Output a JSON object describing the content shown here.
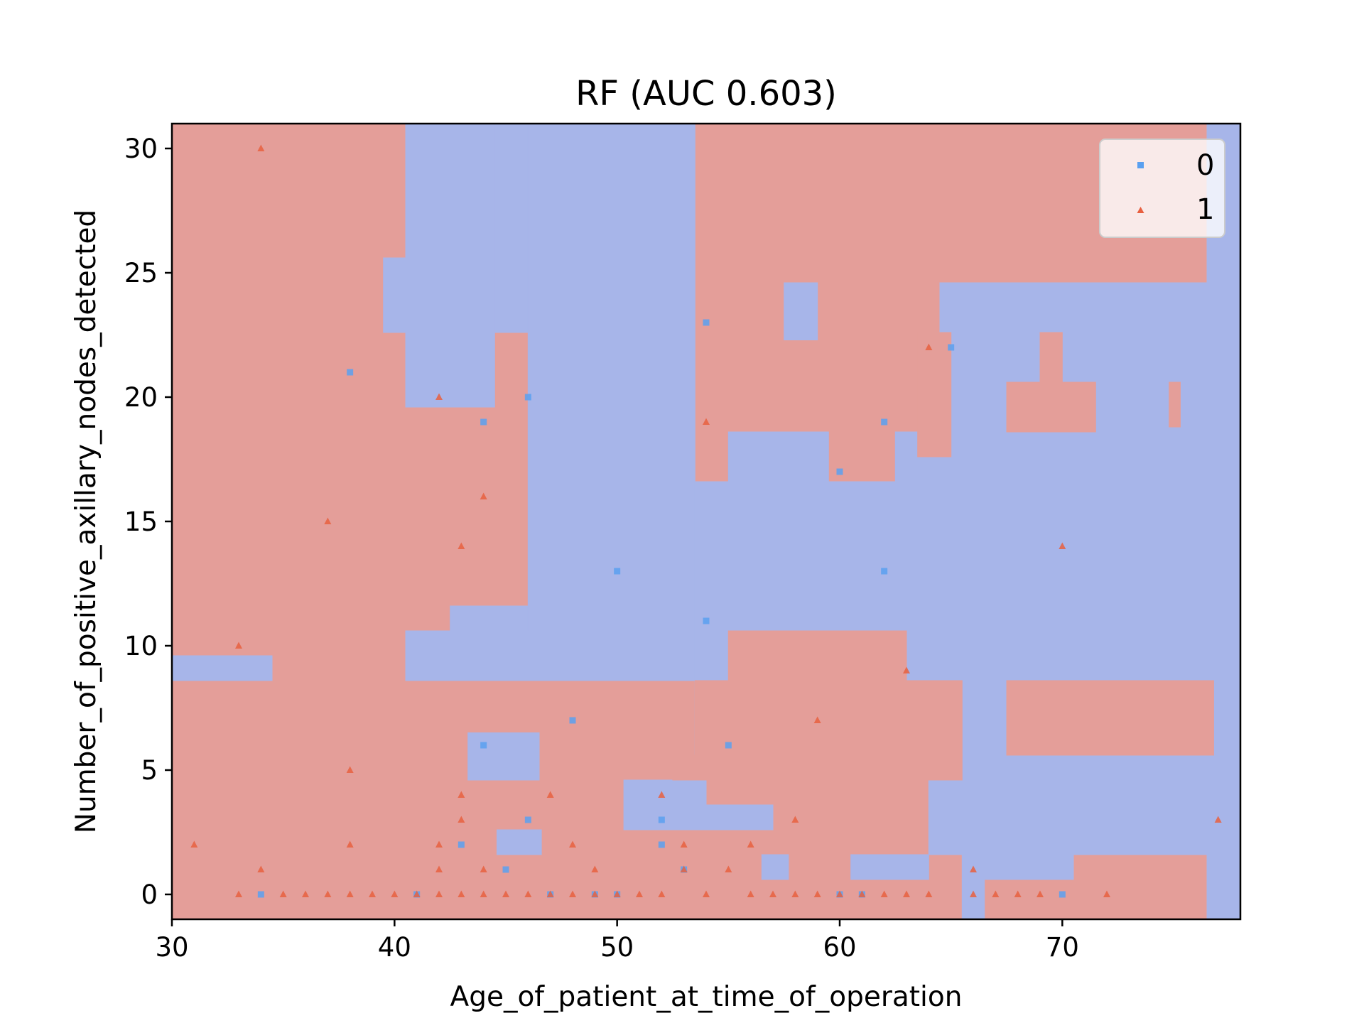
{
  "chart_data": {
    "type": "scatter",
    "title": "RF (AUC 0.603)",
    "xlabel": "Age_of_patient_at_time_of_operation",
    "ylabel": "Number_of_positive_axillary_nodes_detected",
    "xlim": [
      30,
      78
    ],
    "ylim": [
      -1,
      31
    ],
    "xticks": [
      30,
      40,
      50,
      60,
      70
    ],
    "yticks": [
      0,
      5,
      10,
      15,
      20,
      25,
      30
    ],
    "legend_position": "top-right",
    "colors": {
      "region_class_0": "#a7b5e9",
      "region_class_1": "#e49e99",
      "marker_class_0": "#5aa0f0",
      "marker_class_1": "#e86040"
    },
    "decision_region_class_0": [
      [
        [
          40.5,
          31
        ],
        [
          44.5,
          31
        ],
        [
          44.5,
          19.6
        ],
        [
          40.5,
          19.6
        ]
      ],
      [
        [
          39.5,
          22.6
        ],
        [
          40.5,
          22.6
        ],
        [
          40.5,
          25.6
        ],
        [
          39.5,
          25.6
        ]
      ],
      [
        [
          44.5,
          31
        ],
        [
          46,
          31
        ],
        [
          46,
          22.6
        ],
        [
          44.5,
          22.6
        ]
      ],
      [
        [
          46,
          31
        ],
        [
          53.5,
          31
        ],
        [
          53.5,
          10.6
        ],
        [
          46,
          10.6
        ]
      ],
      [
        [
          40.5,
          10.6
        ],
        [
          53.5,
          10.6
        ],
        [
          53.5,
          8.6
        ],
        [
          40.5,
          8.6
        ]
      ],
      [
        [
          42.5,
          11.6
        ],
        [
          46,
          11.6
        ],
        [
          46,
          10.6
        ],
        [
          42.5,
          10.6
        ]
      ],
      [
        [
          53.5,
          16.6
        ],
        [
          78,
          16.6
        ],
        [
          78,
          4.6
        ],
        [
          53.5,
          4.6
        ]
      ],
      [
        [
          55,
          18.6
        ],
        [
          59.5,
          18.6
        ],
        [
          59.5,
          16.6
        ],
        [
          55,
          16.6
        ]
      ],
      [
        [
          62.5,
          18.6
        ],
        [
          64.5,
          18.6
        ],
        [
          64.5,
          16.6
        ],
        [
          62.5,
          16.6
        ]
      ],
      [
        [
          64.5,
          24.6
        ],
        [
          78,
          24.6
        ],
        [
          78,
          16.6
        ],
        [
          64.5,
          16.6
        ]
      ],
      [
        [
          76.5,
          31
        ],
        [
          78,
          31
        ],
        [
          78,
          24.6
        ],
        [
          76.5,
          24.6
        ]
      ],
      [
        [
          57.5,
          24.6
        ],
        [
          59,
          24.6
        ],
        [
          59,
          22.3
        ],
        [
          57.5,
          22.3
        ]
      ],
      [
        [
          30,
          9.6
        ],
        [
          34.5,
          9.6
        ],
        [
          34.5,
          8.6
        ],
        [
          30,
          8.6
        ]
      ],
      [
        [
          43.3,
          6.5
        ],
        [
          46.5,
          6.5
        ],
        [
          46.5,
          4.6
        ],
        [
          43.3,
          4.6
        ]
      ],
      [
        [
          44.6,
          2.6
        ],
        [
          46.6,
          2.6
        ],
        [
          46.6,
          1.6
        ],
        [
          44.6,
          1.6
        ]
      ],
      [
        [
          50.3,
          4.6
        ],
        [
          54,
          4.6
        ],
        [
          54,
          2.6
        ],
        [
          50.3,
          2.6
        ]
      ],
      [
        [
          54,
          3.6
        ],
        [
          57,
          3.6
        ],
        [
          57,
          2.6
        ],
        [
          54,
          2.6
        ]
      ],
      [
        [
          56.5,
          1.6
        ],
        [
          57.7,
          1.6
        ],
        [
          57.7,
          0.6
        ],
        [
          56.5,
          0.6
        ]
      ],
      [
        [
          60.5,
          1.6
        ],
        [
          64,
          1.6
        ],
        [
          64,
          0.6
        ],
        [
          60.5,
          0.6
        ]
      ],
      [
        [
          64,
          4.6
        ],
        [
          78,
          4.6
        ],
        [
          78,
          1.6
        ],
        [
          64,
          1.6
        ]
      ],
      [
        [
          65.5,
          1.6
        ],
        [
          70.5,
          1.6
        ],
        [
          70.5,
          0.6
        ],
        [
          65.5,
          0.6
        ]
      ],
      [
        [
          65.5,
          0.6
        ],
        [
          66.5,
          0.6
        ],
        [
          66.5,
          -1
        ],
        [
          65.5,
          -1
        ]
      ],
      [
        [
          76.5,
          1.6
        ],
        [
          78,
          1.6
        ],
        [
          78,
          -1
        ],
        [
          76.5,
          -1
        ]
      ]
    ],
    "decision_region_class_1": [
      [
        [
          63.5,
          22.6
        ],
        [
          65,
          22.6
        ],
        [
          65,
          17.6
        ],
        [
          63.5,
          17.6
        ]
      ],
      [
        [
          67.5,
          20.6
        ],
        [
          71.5,
          20.6
        ],
        [
          71.5,
          18.6
        ],
        [
          67.5,
          18.6
        ]
      ],
      [
        [
          69,
          22.6
        ],
        [
          70,
          22.6
        ],
        [
          70,
          20.6
        ],
        [
          69,
          20.6
        ]
      ],
      [
        [
          74.8,
          20.6
        ],
        [
          75.3,
          20.6
        ],
        [
          75.3,
          18.8
        ],
        [
          74.8,
          18.8
        ]
      ],
      [
        [
          55,
          10.6
        ],
        [
          63,
          10.6
        ],
        [
          63,
          8.6
        ],
        [
          55,
          8.6
        ]
      ],
      [
        [
          53.5,
          8.6
        ],
        [
          65.5,
          8.6
        ],
        [
          65.5,
          5.6
        ],
        [
          53.5,
          5.6
        ]
      ],
      [
        [
          52.5,
          5.6
        ],
        [
          65.5,
          5.6
        ],
        [
          65.5,
          4.6
        ],
        [
          52.5,
          4.6
        ]
      ],
      [
        [
          67.5,
          8.6
        ],
        [
          76.8,
          8.6
        ],
        [
          76.8,
          5.6
        ],
        [
          67.5,
          5.6
        ]
      ]
    ],
    "series": [
      {
        "name": "0",
        "marker": "square",
        "points": [
          [
            34,
            0
          ],
          [
            38,
            21
          ],
          [
            41,
            0
          ],
          [
            43,
            2
          ],
          [
            44,
            19
          ],
          [
            44,
            6
          ],
          [
            45,
            1
          ],
          [
            46,
            20
          ],
          [
            46,
            3
          ],
          [
            47,
            0
          ],
          [
            48,
            7
          ],
          [
            49,
            0
          ],
          [
            50,
            13
          ],
          [
            50,
            0
          ],
          [
            52,
            3
          ],
          [
            52,
            2
          ],
          [
            53,
            1
          ],
          [
            54,
            23
          ],
          [
            54,
            11
          ],
          [
            55,
            6
          ],
          [
            60,
            17
          ],
          [
            60,
            0
          ],
          [
            61,
            0
          ],
          [
            62,
            19
          ],
          [
            62,
            13
          ],
          [
            65,
            22
          ],
          [
            70,
            0
          ]
        ]
      },
      {
        "name": "1",
        "marker": "triangle",
        "points": [
          [
            31,
            2
          ],
          [
            33,
            10
          ],
          [
            33,
            0
          ],
          [
            34,
            30
          ],
          [
            34,
            1
          ],
          [
            35,
            0
          ],
          [
            36,
            0
          ],
          [
            37,
            15
          ],
          [
            37,
            0
          ],
          [
            38,
            5
          ],
          [
            38,
            2
          ],
          [
            38,
            0
          ],
          [
            39,
            0
          ],
          [
            40,
            0
          ],
          [
            41,
            0
          ],
          [
            42,
            20
          ],
          [
            42,
            2
          ],
          [
            42,
            1
          ],
          [
            42,
            0
          ],
          [
            43,
            14
          ],
          [
            43,
            4
          ],
          [
            43,
            3
          ],
          [
            43,
            0
          ],
          [
            44,
            16
          ],
          [
            44,
            1
          ],
          [
            44,
            0
          ],
          [
            45,
            0
          ],
          [
            46,
            0
          ],
          [
            47,
            4
          ],
          [
            47,
            0
          ],
          [
            48,
            2
          ],
          [
            48,
            0
          ],
          [
            49,
            1
          ],
          [
            49,
            0
          ],
          [
            50,
            0
          ],
          [
            51,
            0
          ],
          [
            52,
            4
          ],
          [
            52,
            0
          ],
          [
            53,
            2
          ],
          [
            53,
            1
          ],
          [
            54,
            19
          ],
          [
            54,
            0
          ],
          [
            55,
            1
          ],
          [
            56,
            2
          ],
          [
            56,
            0
          ],
          [
            57,
            0
          ],
          [
            58,
            3
          ],
          [
            58,
            0
          ],
          [
            59,
            7
          ],
          [
            59,
            0
          ],
          [
            60,
            0
          ],
          [
            61,
            0
          ],
          [
            62,
            0
          ],
          [
            63,
            9
          ],
          [
            63,
            0
          ],
          [
            64,
            22
          ],
          [
            64,
            0
          ],
          [
            66,
            1
          ],
          [
            66,
            0
          ],
          [
            67,
            0
          ],
          [
            68,
            0
          ],
          [
            69,
            0
          ],
          [
            70,
            14
          ],
          [
            72,
            0
          ],
          [
            77,
            3
          ]
        ]
      }
    ]
  }
}
